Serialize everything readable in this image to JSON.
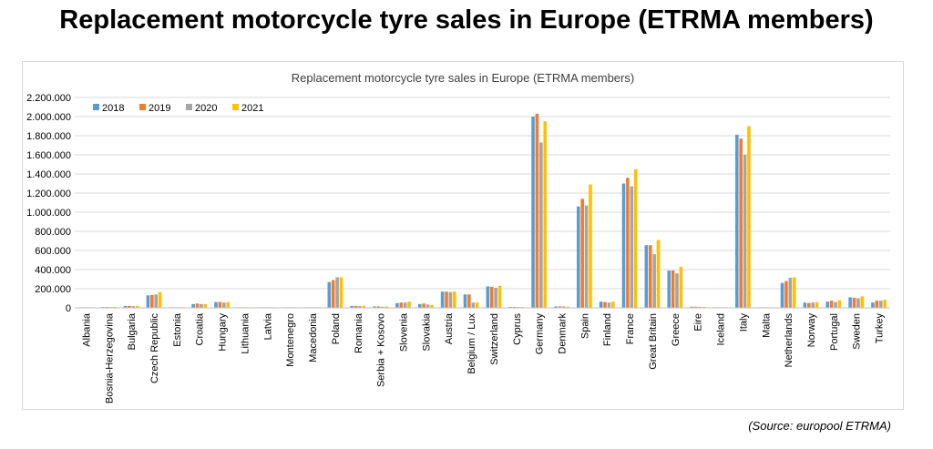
{
  "page_title": "Replacement motorcycle tyre sales in Europe (ETRMA members)",
  "source": "(Source: europool ETRMA)",
  "chart_data": {
    "type": "bar",
    "title": "Replacement motorcycle tyre sales in Europe (ETRMA members)",
    "xlabel": "",
    "ylabel": "",
    "ylim": [
      0,
      2200000
    ],
    "yticks": [
      0,
      200000,
      400000,
      600000,
      800000,
      1000000,
      1200000,
      1400000,
      1600000,
      1800000,
      2000000,
      2200000
    ],
    "ytick_labels": [
      "0",
      "200.000",
      "400.000",
      "600.000",
      "800.000",
      "1.000.000",
      "1.200.000",
      "1.400.000",
      "1.600.000",
      "1.800.000",
      "2.000.000",
      "2.200.000"
    ],
    "grid": true,
    "legend_position": "top-left",
    "categories": [
      "Albania",
      "Bosnia-Herzegovina",
      "Bulgaria",
      "Czech Republic",
      "Estonia",
      "Croatia",
      "Hungary",
      "Lithuania",
      "Latvia",
      "Montenegro",
      "Macedonia",
      "Poland",
      "Romania",
      "Serbia + Kosovo",
      "Slovenia",
      "Slovakia",
      "Austria",
      "Belgium / Lux",
      "Switzerland",
      "Cyprus",
      "Germany",
      "Denmark",
      "Spain",
      "Finland",
      "France",
      "Great Britain",
      "Greece",
      "Eire",
      "Iceland",
      "Italy",
      "Malta",
      "Netherlands",
      "Norway",
      "Portugal",
      "Sweden",
      "Turkey"
    ],
    "series": [
      {
        "name": "2018",
        "color": "#5b9bd5",
        "values": [
          5000,
          8000,
          20000,
          130000,
          6000,
          40000,
          60000,
          5000,
          2000,
          1000,
          1000,
          270000,
          20000,
          15000,
          50000,
          40000,
          170000,
          140000,
          225000,
          10000,
          2000000,
          15000,
          1060000,
          65000,
          1300000,
          655000,
          390000,
          12000,
          1000,
          1810000,
          1000,
          260000,
          55000,
          65000,
          110000,
          55000
        ]
      },
      {
        "name": "2019",
        "color": "#ed7d31",
        "values": [
          4000,
          9000,
          20000,
          135000,
          6000,
          45000,
          62000,
          5000,
          2000,
          1000,
          1000,
          290000,
          20000,
          15000,
          55000,
          45000,
          170000,
          140000,
          220000,
          10000,
          2030000,
          15000,
          1140000,
          60000,
          1360000,
          655000,
          390000,
          12000,
          1000,
          1770000,
          1000,
          280000,
          50000,
          75000,
          105000,
          75000
        ]
      },
      {
        "name": "2020",
        "color": "#a5a5a5",
        "values": [
          4000,
          8000,
          18000,
          140000,
          5000,
          40000,
          55000,
          5000,
          2000,
          1000,
          1000,
          320000,
          18000,
          12000,
          55000,
          35000,
          165000,
          55000,
          210000,
          8000,
          1730000,
          15000,
          1070000,
          55000,
          1270000,
          560000,
          360000,
          10000,
          1000,
          1600000,
          1000,
          315000,
          55000,
          60000,
          100000,
          75000
        ]
      },
      {
        "name": "2021",
        "color": "#ffc000",
        "values": [
          4000,
          10000,
          22000,
          165000,
          6000,
          40000,
          60000,
          5000,
          2000,
          1000,
          1000,
          320000,
          20000,
          15000,
          65000,
          30000,
          170000,
          55000,
          230000,
          8000,
          1950000,
          12000,
          1290000,
          65000,
          1450000,
          710000,
          430000,
          10000,
          1000,
          1900000,
          1000,
          320000,
          60000,
          80000,
          120000,
          85000
        ]
      }
    ]
  }
}
